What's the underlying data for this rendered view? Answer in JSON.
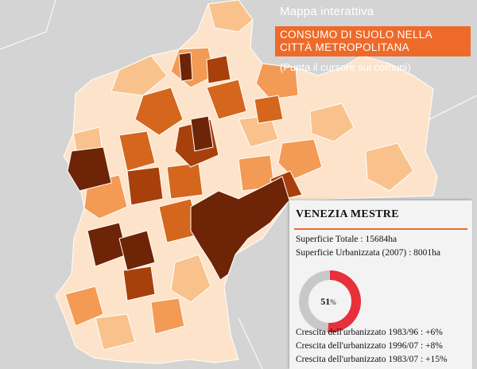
{
  "header": {
    "kicker": "Mappa interattiva",
    "title_line1": "CONSUMO DI SUOLO NELLA",
    "title_line2": "CITTÀ METROPOLITANA",
    "hint": "(Punta il cursore sui comuni)"
  },
  "colors": {
    "background": "#d4d4d4",
    "accent": "#ee6a2a",
    "donut_fill": "#e8303a",
    "donut_rest": "#c8c8c8",
    "class_1": "#fde3c9",
    "class_2": "#f9c28d",
    "class_3": "#f39a55",
    "class_4": "#d4661d",
    "class_5": "#a8400c",
    "class_6": "#6e2406"
  },
  "panel": {
    "comune": "VENEZIA MESTRE",
    "superficie_totale": "Superficie Totale : 15684ha",
    "superficie_urbanizzata": "Superficie Urbanizzata (2007) : 8001ha",
    "pct_value": 51,
    "pct_label": "51",
    "pct_unit": "%",
    "growth": [
      "Crescita dell'urbanizzato 1983/96 : +6%",
      "Crescita dell'urbanizzato 1996/07 : +8%",
      "Crescita dell'urbanizzato 1983/07 : +15%"
    ]
  }
}
